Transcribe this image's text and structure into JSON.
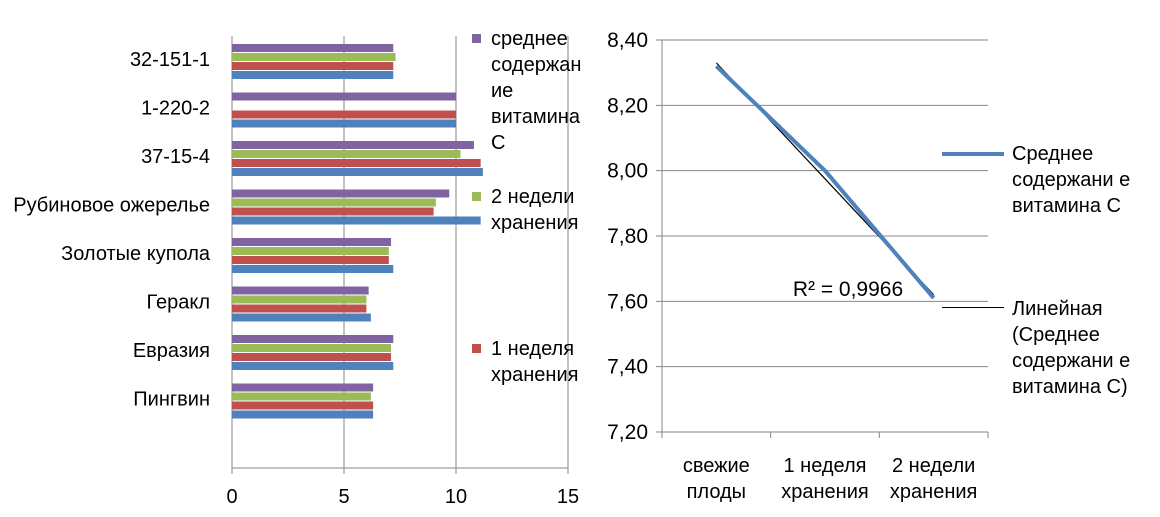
{
  "chart_data": [
    {
      "type": "bar",
      "orientation": "horizontal",
      "categories": [
        "32-151-1",
        "1-220-2",
        "37-15-4",
        "Рубиновое ожерелье",
        "Золотые купола",
        "Геракл",
        "Евразия",
        "Пингвин"
      ],
      "series": [
        {
          "name": "среднее содержание витамина С",
          "color": "#8064a2",
          "values": [
            7.2,
            10.0,
            10.8,
            9.7,
            7.1,
            6.1,
            7.2,
            6.3
          ]
        },
        {
          "name": "2 недели хранения",
          "color": "#9bbb59",
          "values": [
            7.3,
            0,
            10.2,
            9.1,
            7.0,
            6.0,
            7.1,
            6.2
          ]
        },
        {
          "name": "1 неделя хранения",
          "color": "#c0504d",
          "values": [
            7.2,
            10.0,
            11.1,
            9.0,
            7.0,
            6.0,
            7.1,
            6.3
          ]
        },
        {
          "color": "#4f81bd",
          "values": [
            7.2,
            10.0,
            11.2,
            11.1,
            7.2,
            6.2,
            7.2,
            6.3
          ]
        }
      ],
      "xticks": [
        "0",
        "5",
        "10",
        "15"
      ],
      "xlim": [
        0,
        15
      ],
      "grid": true,
      "legend": "right",
      "legend_labels": {
        "s1": "среднее содержан ие витамина С",
        "s2": "2 недели хранения",
        "s3": "1 неделя хранения"
      }
    },
    {
      "type": "line",
      "categories": [
        "свежие плоды",
        "1 неделя хранения",
        "2 недели хранения"
      ],
      "series": [
        {
          "name": "Среднее содержание витамина С",
          "color": "#4f81bd",
          "values": [
            8.32,
            8.0,
            7.61
          ]
        },
        {
          "name": "Линейная (Среднее содержание витамина С)",
          "color": "#000000",
          "values": [
            8.33,
            7.975,
            7.62
          ]
        }
      ],
      "yticks": [
        "8,40",
        "8,20",
        "8,00",
        "7,80",
        "7,60",
        "7,40",
        "7,20"
      ],
      "ylim": [
        7.2,
        8.4
      ],
      "xtick_lines": [
        [
          "свежие",
          "плоды"
        ],
        [
          "1 неделя",
          "хранения"
        ],
        [
          "2 недели",
          "хранения"
        ]
      ],
      "annotation": "R² = 0,9966",
      "grid": true,
      "legend": "right",
      "legend_labels": {
        "s1": "Среднее содержани е витамина С",
        "s2": "Линейная (Среднее содержани е витамина С)"
      }
    }
  ]
}
